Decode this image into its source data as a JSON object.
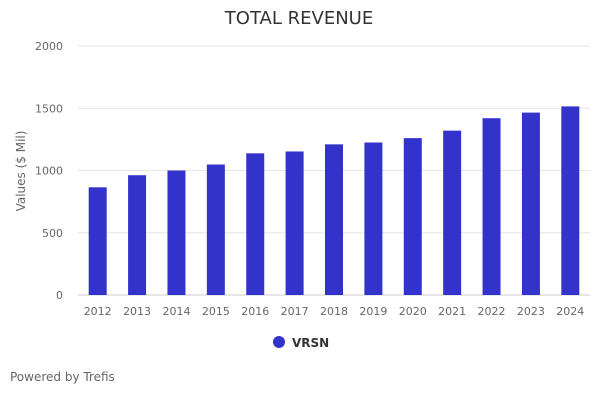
{
  "footer": {
    "text": "Powered by Trefis"
  },
  "chart_data": {
    "type": "bar",
    "title": "TOTAL REVENUE",
    "xlabel": "",
    "ylabel": "Values ($ Mil)",
    "ylim": [
      0,
      2000
    ],
    "yticks": [
      0,
      500,
      1000,
      1500,
      2000
    ],
    "grid": true,
    "legend_position": "bottom",
    "categories": [
      "2012",
      "2013",
      "2014",
      "2015",
      "2016",
      "2017",
      "2018",
      "2019",
      "2020",
      "2021",
      "2022",
      "2023",
      "2024"
    ],
    "series": [
      {
        "name": "VRSN",
        "color": "#3333cc",
        "values": [
          865,
          962,
          1000,
          1048,
          1138,
          1153,
          1210,
          1225,
          1260,
          1320,
          1420,
          1465,
          1515
        ]
      }
    ]
  }
}
